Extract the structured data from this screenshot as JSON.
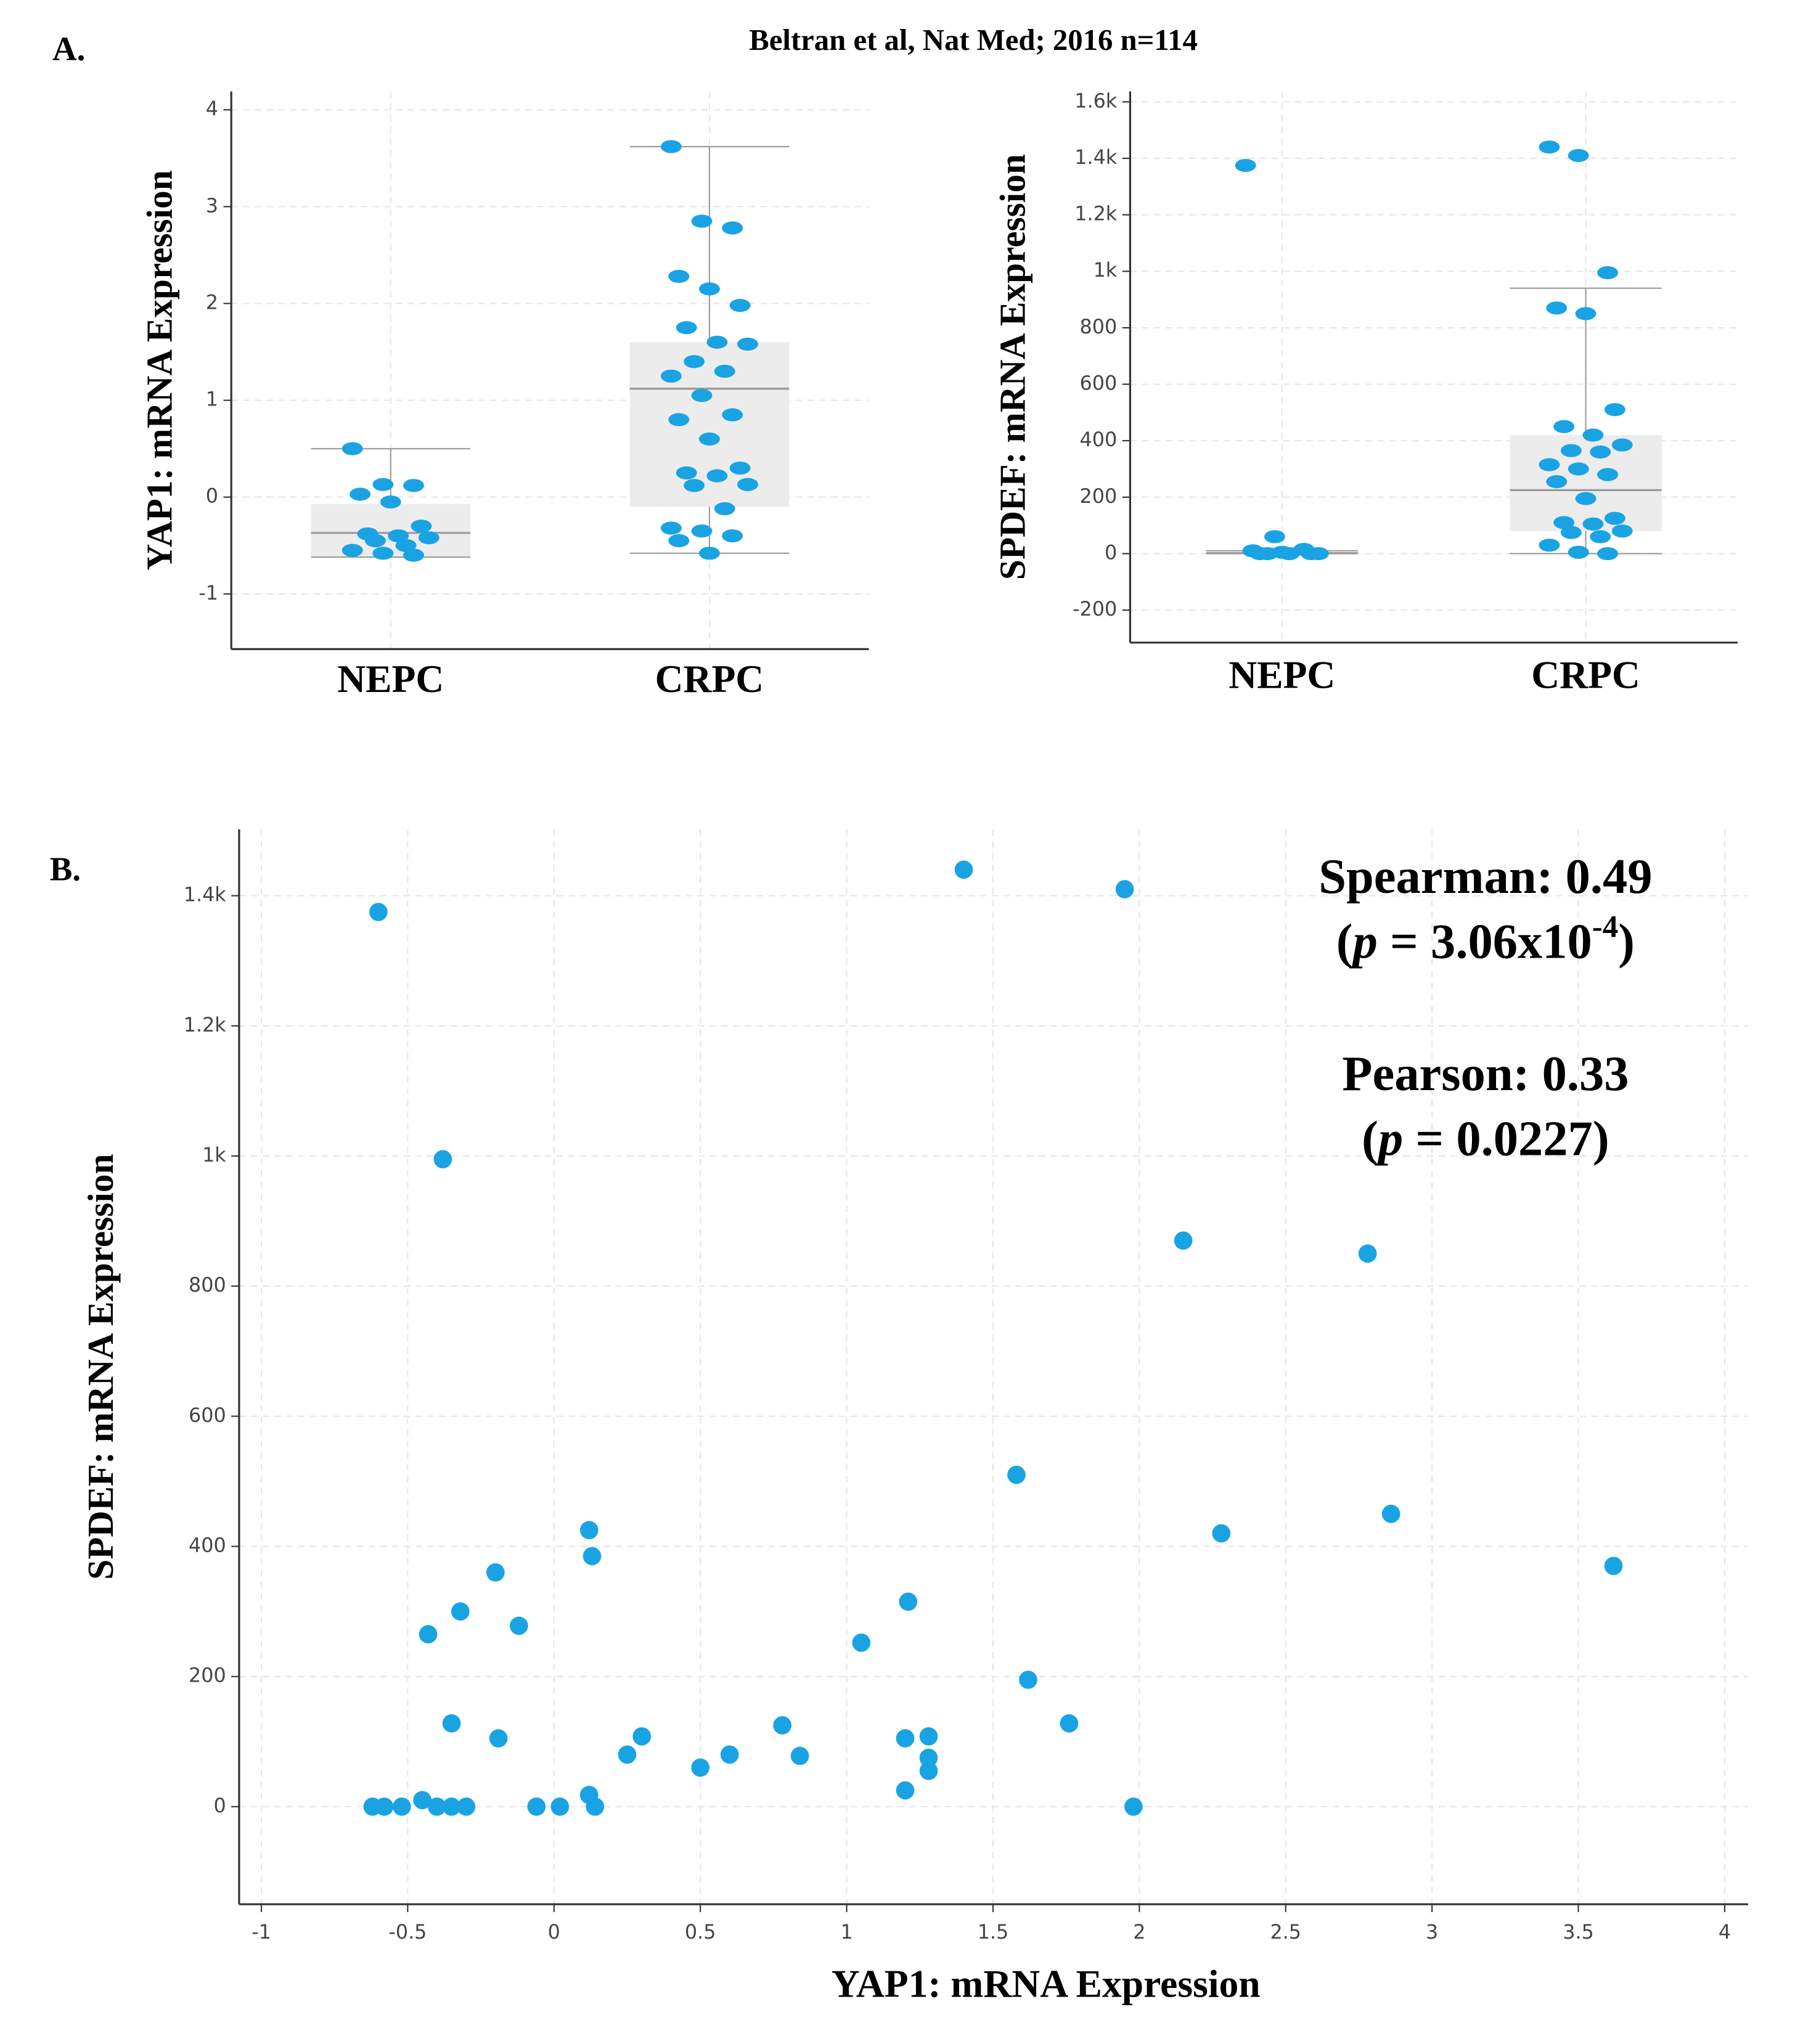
{
  "header": "Beltran et al, Nat Med; 2016 n=114",
  "panel_labels": [
    "A.",
    "B."
  ],
  "chart_data": [
    {
      "type": "box",
      "ylabel": "YAP1: mRNA Expression",
      "categories": [
        "NEPC",
        "CRPC"
      ],
      "color": "#1aa3e3",
      "boxes": [
        {
          "whisker_low": -0.62,
          "q1": -0.62,
          "median": -0.37,
          "q3": -0.07,
          "whisker_high": 0.5
        },
        {
          "whisker_low": -0.58,
          "q1": -0.1,
          "median": 1.12,
          "q3": 1.6,
          "whisker_high": 3.62
        }
      ],
      "points": [
        [
          0.5,
          0.13,
          0.12,
          0.03,
          -0.05,
          -0.3,
          -0.38,
          -0.4,
          -0.42,
          -0.45,
          -0.5,
          -0.55,
          -0.58,
          -0.6
        ],
        [
          3.62,
          2.85,
          2.78,
          2.28,
          2.15,
          1.98,
          1.75,
          1.6,
          1.58,
          1.4,
          1.3,
          1.25,
          1.05,
          0.85,
          0.8,
          0.6,
          0.3,
          0.25,
          0.22,
          0.13,
          0.12,
          -0.12,
          -0.32,
          -0.35,
          -0.4,
          -0.45,
          -0.58
        ]
      ],
      "ylim": [
        -1.57,
        4.19
      ],
      "yticks": [
        -1,
        0,
        1,
        2,
        3,
        4
      ],
      "grid": true
    },
    {
      "type": "box",
      "ylabel": "SPDEF: mRNA Expression",
      "categories": [
        "NEPC",
        "CRPC"
      ],
      "color": "#1aa3e3",
      "boxes": [
        {
          "whisker_low": 0,
          "q1": 0,
          "median": 2,
          "q3": 5,
          "whisker_high": 10
        },
        {
          "whisker_low": 0,
          "q1": 80,
          "median": 225,
          "q3": 420,
          "whisker_high": 940
        }
      ],
      "points": [
        [
          1375,
          60,
          15,
          10,
          5,
          0,
          0,
          0,
          0,
          0
        ],
        [
          1440,
          1410,
          995,
          870,
          850,
          510,
          450,
          420,
          385,
          365,
          360,
          315,
          300,
          280,
          255,
          195,
          125,
          110,
          105,
          80,
          75,
          60,
          30,
          5,
          0
        ]
      ],
      "ylim": [
        -315,
        1637
      ],
      "yticks": [
        -200,
        0,
        200,
        400,
        600,
        800,
        {
          "value": 1000,
          "label": "1k"
        },
        {
          "value": 1200,
          "label": "1.2k"
        },
        {
          "value": 1400,
          "label": "1.4k"
        },
        {
          "value": 1600,
          "label": "1.6k"
        }
      ],
      "grid": true
    },
    {
      "type": "scatter",
      "xlabel": "YAP1: mRNA Expression",
      "ylabel": "SPDEF: mRNA Expression",
      "color": "#1aa3e3",
      "x": [
        -0.6,
        1.4,
        1.95,
        -0.38,
        2.15,
        2.78,
        1.58,
        2.86,
        2.28,
        0.12,
        0.13,
        3.62,
        -0.2,
        -0.32,
        1.21,
        -0.12,
        -0.43,
        1.05,
        1.62,
        -0.35,
        0.78,
        1.76,
        -0.19,
        0.3,
        1.2,
        1.28,
        0.25,
        0.6,
        0.84,
        1.28,
        0.5,
        1.28,
        1.2,
        0.12,
        -0.62,
        -0.58,
        -0.52,
        -0.45,
        -0.4,
        -0.35,
        -0.3,
        -0.06,
        0.02,
        0.14,
        1.98
      ],
      "y": [
        1375,
        1440,
        1410,
        995,
        870,
        850,
        510,
        450,
        420,
        425,
        385,
        370,
        360,
        300,
        315,
        278,
        265,
        252,
        195,
        128,
        125,
        128,
        105,
        108,
        105,
        108,
        80,
        80,
        78,
        75,
        60,
        55,
        25,
        18,
        0,
        0,
        0,
        10,
        0,
        0,
        0,
        0,
        0,
        0,
        0
      ],
      "xlim": [
        -1.076,
        4.08
      ],
      "xticks": [
        -1,
        -0.5,
        0,
        0.5,
        1,
        1.5,
        2,
        2.5,
        3,
        3.5,
        4
      ],
      "ylim": [
        -150,
        1502
      ],
      "yticks": [
        0,
        200,
        400,
        600,
        800,
        {
          "value": 1000,
          "label": "1k"
        },
        {
          "value": 1200,
          "label": "1.2k"
        },
        {
          "value": 1400,
          "label": "1.4k"
        }
      ],
      "grid": true,
      "annotations": [
        {
          "text": "Spearman: 0.49",
          "p": [
            "(",
            "p",
            " = 3.06x10",
            "-4",
            ")"
          ]
        },
        {
          "text": "Pearson: 0.33",
          "p": [
            "(",
            "p",
            " = 0.0227)"
          ]
        }
      ]
    }
  ]
}
